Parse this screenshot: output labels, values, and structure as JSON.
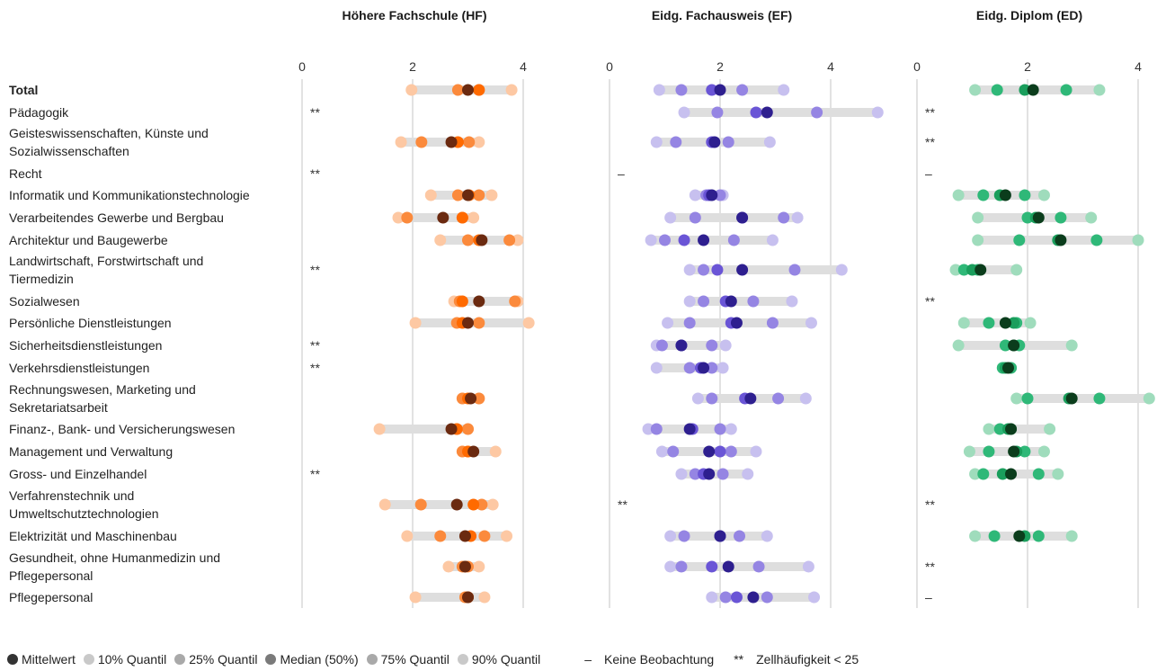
{
  "chart_data": {
    "type": "dot-range",
    "panels": [
      {
        "title": "Höhere Fachschule (HF)",
        "ticks": [
          0,
          2,
          4
        ],
        "xlim": [
          0,
          4.3
        ],
        "colors": {
          "mean": "#6b2a10",
          "p10": "#fdc8a3",
          "p25": "#fb8a3c",
          "median": "#ff6a00",
          "p75": "#fb8a3c",
          "p90": "#fdc8a3"
        }
      },
      {
        "title": "Eidg. Fachausweis (EF)",
        "ticks": [
          0,
          2,
          4
        ],
        "xlim": [
          0,
          4.3
        ],
        "colors": {
          "mean": "#2e1f8f",
          "p10": "#c7c0ef",
          "p25": "#9585e3",
          "median": "#6a55d6",
          "p75": "#9585e3",
          "p90": "#c7c0ef"
        }
      },
      {
        "title": "Eidg. Diplom (ED)",
        "ticks": [
          0,
          2,
          4
        ],
        "xlim": [
          0,
          4.3
        ],
        "colors": {
          "mean": "#0b3d1c",
          "p10": "#9fdcbc",
          "p25": "#2fb878",
          "median": "#1a9e5c",
          "p75": "#2fb878",
          "p90": "#9fdcbc"
        }
      }
    ],
    "categories": [
      "Total",
      "Pädagogik",
      "Geisteswissenschaften, Künste und Sozialwissenschaften",
      "Recht",
      "Informatik und Kommunikationstechnologie",
      "Verarbeitendes Gewerbe und Bergbau",
      "Architektur und Baugewerbe",
      "Landwirtschaft, Forstwirtschaft und Tiermedizin",
      "Sozialwesen",
      "Persönliche Dienstleistungen",
      "Sicherheitsdienstleistungen",
      "Verkehrsdienstleistungen",
      "Rechnungswesen, Marketing und Sekretariatsarbeit",
      "Finanz-, Bank- und Versicherungswesen",
      "Management und Verwaltung",
      "Gross- und Einzelhandel",
      "Verfahrenstechnik und Umweltschutztechnologien",
      "Elektrizität und Maschinenbau",
      "Gesundheit, ohne Humanmedizin und Pflegepersonal",
      "Pflegepersonal"
    ],
    "category_lines": [
      [
        "Total"
      ],
      [
        "Pädagogik"
      ],
      [
        "Geisteswissenschaften, Künste und",
        "Sozialwissenschaften"
      ],
      [
        "Recht"
      ],
      [
        "Informatik und Kommunikationstechnologie"
      ],
      [
        "Verarbeitendes Gewerbe und Bergbau"
      ],
      [
        "Architektur und Baugewerbe"
      ],
      [
        "Landwirtschaft, Forstwirtschaft und",
        "Tiermedizin"
      ],
      [
        "Sozialwesen"
      ],
      [
        "Persönliche Dienstleistungen"
      ],
      [
        "Sicherheitsdienstleistungen"
      ],
      [
        "Verkehrsdienstleistungen"
      ],
      [
        "Rechnungswesen, Marketing und",
        "Sekretariatsarbeit"
      ],
      [
        "Finanz-, Bank- und Versicherungswesen"
      ],
      [
        "Management und Verwaltung"
      ],
      [
        "Gross- und Einzelhandel"
      ],
      [
        "Verfahrenstechnik und",
        "Umweltschutztechnologien"
      ],
      [
        "Elektrizität und Maschinenbau"
      ],
      [
        "Gesundheit, ohne Humanmedizin und",
        "Pflegepersonal"
      ],
      [
        "Pflegepersonal"
      ]
    ],
    "data": {
      "HF": [
        {
          "p10": 1.98,
          "p25": 2.82,
          "median": 3.2,
          "p75": 3.2,
          "p90": 3.79,
          "mean": 3.0
        },
        {
          "marker": "**"
        },
        {
          "p10": 1.79,
          "p25": 2.16,
          "median": 2.82,
          "p75": 3.02,
          "p90": 3.2,
          "mean": 2.7
        },
        {
          "marker": "**"
        },
        {
          "p10": 2.33,
          "p25": 2.82,
          "median": 3.02,
          "p75": 3.2,
          "p90": 3.43,
          "mean": 3.0
        },
        {
          "p10": 1.74,
          "p25": 1.9,
          "median": 2.9,
          "p75": 2.9,
          "p90": 3.1,
          "mean": 2.55
        },
        {
          "p10": 2.5,
          "p25": 3.0,
          "median": 3.2,
          "p75": 3.75,
          "p90": 3.9,
          "mean": 3.25
        },
        {
          "marker": "**"
        },
        {
          "p10": 2.75,
          "p25": 2.85,
          "median": 2.9,
          "p75": 3.85,
          "p90": 3.9,
          "mean": 3.2
        },
        {
          "p10": 2.05,
          "p25": 2.8,
          "median": 2.9,
          "p75": 3.2,
          "p90": 4.1,
          "mean": 3.0
        },
        {
          "marker": "**"
        },
        {
          "marker": "**"
        },
        {
          "p10": 2.9,
          "p25": 2.9,
          "median": 3.0,
          "p75": 3.2,
          "p90": 3.2,
          "mean": 3.05
        },
        {
          "p10": 1.4,
          "p25": 2.8,
          "median": 2.8,
          "p75": 3.0,
          "p90": 3.0,
          "mean": 2.7
        },
        {
          "p10": 2.9,
          "p25": 2.9,
          "median": 3.0,
          "p75": 3.0,
          "p90": 3.5,
          "mean": 3.1
        },
        {
          "marker": "**"
        },
        {
          "p10": 1.5,
          "p25": 2.15,
          "median": 3.1,
          "p75": 3.25,
          "p90": 3.45,
          "mean": 2.8
        },
        {
          "p10": 1.9,
          "p25": 2.5,
          "median": 3.05,
          "p75": 3.3,
          "p90": 3.7,
          "mean": 2.95
        },
        {
          "p10": 2.65,
          "p25": 2.9,
          "median": 2.95,
          "p75": 3.0,
          "p90": 3.2,
          "mean": 2.95
        },
        {
          "p10": 2.05,
          "p25": 2.95,
          "median": 3.0,
          "p75": 3.0,
          "p90": 3.3,
          "mean": 3.0
        }
      ],
      "EF": [
        {
          "p10": 0.9,
          "p25": 1.3,
          "median": 1.85,
          "p75": 2.4,
          "p90": 3.15,
          "mean": 2.0
        },
        {
          "p10": 1.35,
          "p25": 1.95,
          "median": 2.65,
          "p75": 3.75,
          "p90": 4.85,
          "mean": 2.85
        },
        {
          "p10": 0.85,
          "p25": 1.2,
          "median": 1.85,
          "p75": 2.15,
          "p90": 2.9,
          "mean": 1.9
        },
        {
          "marker": "–"
        },
        {
          "p10": 1.55,
          "p25": 1.75,
          "median": 1.8,
          "p75": 2.0,
          "p90": 2.05,
          "mean": 1.85
        },
        {
          "p10": 1.1,
          "p25": 1.55,
          "median": 2.4,
          "p75": 3.15,
          "p90": 3.4,
          "mean": 2.4
        },
        {
          "p10": 0.75,
          "p25": 1.0,
          "median": 1.35,
          "p75": 2.25,
          "p90": 2.95,
          "mean": 1.7
        },
        {
          "p10": 1.45,
          "p25": 1.7,
          "median": 1.95,
          "p75": 3.35,
          "p90": 4.2,
          "mean": 2.4
        },
        {
          "p10": 1.45,
          "p25": 1.7,
          "median": 2.1,
          "p75": 2.6,
          "p90": 3.3,
          "mean": 2.2
        },
        {
          "p10": 1.05,
          "p25": 1.45,
          "median": 2.2,
          "p75": 2.95,
          "p90": 3.65,
          "mean": 2.3
        },
        {
          "p10": 0.85,
          "p25": 0.95,
          "median": 1.3,
          "p75": 1.85,
          "p90": 2.1,
          "mean": 1.3
        },
        {
          "p10": 0.85,
          "p25": 1.45,
          "median": 1.65,
          "p75": 1.85,
          "p90": 2.05,
          "mean": 1.7
        },
        {
          "p10": 1.6,
          "p25": 1.85,
          "median": 2.45,
          "p75": 3.05,
          "p90": 3.55,
          "mean": 2.55
        },
        {
          "p10": 0.7,
          "p25": 0.85,
          "median": 1.5,
          "p75": 2.0,
          "p90": 2.2,
          "mean": 1.45
        },
        {
          "p10": 0.95,
          "p25": 1.15,
          "median": 2.0,
          "p75": 2.2,
          "p90": 2.65,
          "mean": 1.8
        },
        {
          "p10": 1.3,
          "p25": 1.55,
          "median": 1.7,
          "p75": 2.05,
          "p90": 2.5,
          "mean": 1.8
        },
        {
          "marker": "**"
        },
        {
          "p10": 1.1,
          "p25": 1.35,
          "median": 2.0,
          "p75": 2.35,
          "p90": 2.85,
          "mean": 2.0
        },
        {
          "p10": 1.1,
          "p25": 1.3,
          "median": 1.85,
          "p75": 2.7,
          "p90": 3.6,
          "mean": 2.15
        },
        {
          "p10": 1.85,
          "p25": 2.1,
          "median": 2.3,
          "p75": 2.85,
          "p90": 3.7,
          "mean": 2.6
        }
      ],
      "ED": [
        {
          "p10": 1.05,
          "p25": 1.45,
          "median": 1.95,
          "p75": 2.7,
          "p90": 3.3,
          "mean": 2.1
        },
        {
          "marker": "**"
        },
        {
          "marker": "**"
        },
        {
          "marker": "–"
        },
        {
          "p10": 0.75,
          "p25": 1.2,
          "median": 1.5,
          "p75": 1.95,
          "p90": 2.3,
          "mean": 1.6
        },
        {
          "p10": 1.1,
          "p25": 2.0,
          "median": 2.15,
          "p75": 2.6,
          "p90": 3.15,
          "mean": 2.2
        },
        {
          "p10": 1.1,
          "p25": 1.85,
          "median": 2.55,
          "p75": 3.25,
          "p90": 4.0,
          "mean": 2.6
        },
        {
          "p10": 0.7,
          "p25": 0.85,
          "median": 1.0,
          "p75": 1.1,
          "p90": 1.8,
          "mean": 1.15
        },
        {
          "marker": "**"
        },
        {
          "p10": 0.85,
          "p25": 1.3,
          "median": 1.75,
          "p75": 1.8,
          "p90": 2.05,
          "mean": 1.6
        },
        {
          "p10": 0.75,
          "p25": 1.6,
          "median": 1.75,
          "p75": 1.85,
          "p90": 2.8,
          "mean": 1.75
        },
        {
          "p10": 1.55,
          "p25": 1.55,
          "median": 1.6,
          "p75": 1.7,
          "p90": 1.7,
          "mean": 1.65
        },
        {
          "p10": 1.8,
          "p25": 2.0,
          "median": 2.75,
          "p75": 3.3,
          "p90": 4.2,
          "mean": 2.8
        },
        {
          "p10": 1.3,
          "p25": 1.5,
          "median": 1.65,
          "p75": 1.7,
          "p90": 2.4,
          "mean": 1.7
        },
        {
          "p10": 0.95,
          "p25": 1.3,
          "median": 1.8,
          "p75": 1.95,
          "p90": 2.3,
          "mean": 1.75
        },
        {
          "p10": 1.05,
          "p25": 1.2,
          "median": 1.55,
          "p75": 2.2,
          "p90": 2.55,
          "mean": 1.7
        },
        {
          "marker": "**"
        },
        {
          "p10": 1.05,
          "p25": 1.4,
          "median": 1.95,
          "p75": 2.2,
          "p90": 2.8,
          "mean": 1.85
        },
        {
          "marker": "**"
        },
        {
          "marker": "–"
        }
      ]
    },
    "legend": {
      "items": [
        {
          "label": "Mittelwert",
          "color": "#333333"
        },
        {
          "label": "10% Quantil",
          "color": "#c9c9c9"
        },
        {
          "label": "25% Quantil",
          "color": "#a9a9a9"
        },
        {
          "label": "Median (50%)",
          "color": "#7a7a7a"
        },
        {
          "label": "75% Quantil",
          "color": "#a9a9a9"
        },
        {
          "label": "90% Quantil",
          "color": "#c9c9c9"
        }
      ],
      "no_obs_symbol": "–",
      "no_obs_label": "Keine Beobachtung",
      "small_n_symbol": "**",
      "small_n_label": "Zellhäufigkeit < 25"
    }
  }
}
